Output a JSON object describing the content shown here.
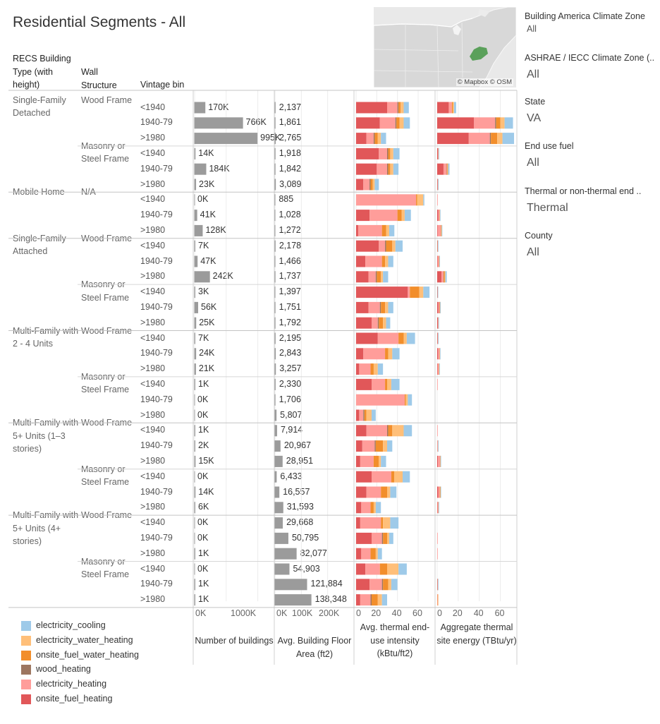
{
  "title": "Residential Segments - All",
  "headers": {
    "type": "RECS Building Type (with height)",
    "wall": "Wall Structure",
    "vintage": "Vintage bin"
  },
  "filters": [
    {
      "label": "Building America Climate Zone",
      "value": "All"
    },
    {
      "label": "ASHRAE / IECC Climate Zone (..",
      "value": "All"
    },
    {
      "label": "State",
      "value": "VA"
    },
    {
      "label": "End use fuel",
      "value": "All"
    },
    {
      "label": "Thermal or non-thermal end ..",
      "value": "Thermal"
    },
    {
      "label": "County",
      "value": "All"
    }
  ],
  "map_credit": "© Mapbox © OSM",
  "axis_titles": {
    "buildings": "Number of buildings",
    "area": "Avg. Building Floor Area (ft2)",
    "intensity": "Avg. thermal end-use intensity (kBtu/ft2)",
    "energy": "Aggregate thermal site energy (TBtu/yr)"
  },
  "axis_ticks": {
    "buildings": [
      "0K",
      "1000K"
    ],
    "area": [
      "0K",
      "100K",
      "200K"
    ],
    "intensity": [
      "0",
      "20",
      "40",
      "60"
    ],
    "energy": [
      "0",
      "20",
      "40",
      "60"
    ]
  },
  "legend": [
    {
      "label": "electricity_cooling",
      "color": "#9ecae9"
    },
    {
      "label": "electricity_water_heating",
      "color": "#ffbf79"
    },
    {
      "label": "onsite_fuel_water_heating",
      "color": "#f28e2b"
    },
    {
      "label": "wood_heating",
      "color": "#9d7660"
    },
    {
      "label": "electricity_heating",
      "color": "#ff9d9a"
    },
    {
      "label": "onsite_fuel_heating",
      "color": "#e15759"
    }
  ],
  "types": [
    {
      "name": "Single-Family Detached",
      "walls": [
        {
          "name": "Wood Frame",
          "rows": [
            {
              "vintage": "<1940",
              "n_label": "170K",
              "area_label": "2,137"
            },
            {
              "vintage": "1940-79",
              "n_label": "766K",
              "area_label": "1,861"
            },
            {
              "vintage": ">1980",
              "n_label": "995K",
              "area_label": "2,765"
            }
          ]
        },
        {
          "name": "Masonry or Steel Frame",
          "rows": [
            {
              "vintage": "<1940",
              "n_label": "14K",
              "area_label": "1,918"
            },
            {
              "vintage": "1940-79",
              "n_label": "184K",
              "area_label": "1,842"
            },
            {
              "vintage": ">1980",
              "n_label": "23K",
              "area_label": "3,089"
            }
          ]
        }
      ]
    },
    {
      "name": "Mobile Home",
      "walls": [
        {
          "name": "N/A",
          "rows": [
            {
              "vintage": "<1940",
              "n_label": "0K",
              "area_label": "885"
            },
            {
              "vintage": "1940-79",
              "n_label": "41K",
              "area_label": "1,028"
            },
            {
              "vintage": ">1980",
              "n_label": "128K",
              "area_label": "1,272"
            }
          ]
        }
      ]
    },
    {
      "name": "Single-Family Attached",
      "walls": [
        {
          "name": "Wood Frame",
          "rows": [
            {
              "vintage": "<1940",
              "n_label": "7K",
              "area_label": "2,178"
            },
            {
              "vintage": "1940-79",
              "n_label": "47K",
              "area_label": "1,466"
            },
            {
              "vintage": ">1980",
              "n_label": "242K",
              "area_label": "1,737"
            }
          ]
        },
        {
          "name": "Masonry or Steel Frame",
          "rows": [
            {
              "vintage": "<1940",
              "n_label": "3K",
              "area_label": "1,397"
            },
            {
              "vintage": "1940-79",
              "n_label": "56K",
              "area_label": "1,751"
            },
            {
              "vintage": ">1980",
              "n_label": "25K",
              "area_label": "1,792"
            }
          ]
        }
      ]
    },
    {
      "name": "Multi-Family with 2 - 4 Units",
      "walls": [
        {
          "name": "Wood Frame",
          "rows": [
            {
              "vintage": "<1940",
              "n_label": "7K",
              "area_label": "2,195"
            },
            {
              "vintage": "1940-79",
              "n_label": "24K",
              "area_label": "2,843"
            },
            {
              "vintage": ">1980",
              "n_label": "21K",
              "area_label": "3,257"
            }
          ]
        },
        {
          "name": "Masonry or Steel Frame",
          "rows": [
            {
              "vintage": "<1940",
              "n_label": "1K",
              "area_label": "2,330"
            },
            {
              "vintage": "1940-79",
              "n_label": "0K",
              "area_label": "1,706"
            },
            {
              "vintage": ">1980",
              "n_label": "0K",
              "area_label": "5,807"
            }
          ]
        }
      ]
    },
    {
      "name": "Multi-Family with 5+ Units (1–3 stories)",
      "walls": [
        {
          "name": "Wood Frame",
          "rows": [
            {
              "vintage": "<1940",
              "n_label": "1K",
              "area_label": "7,914"
            },
            {
              "vintage": "1940-79",
              "n_label": "2K",
              "area_label": "20,967"
            },
            {
              "vintage": ">1980",
              "n_label": "15K",
              "area_label": "28,951"
            }
          ]
        },
        {
          "name": "Masonry or Steel Frame",
          "rows": [
            {
              "vintage": "<1940",
              "n_label": "0K",
              "area_label": "6,433"
            },
            {
              "vintage": "1940-79",
              "n_label": "14K",
              "area_label": "16,557"
            },
            {
              "vintage": ">1980",
              "n_label": "6K",
              "area_label": "31,593"
            }
          ]
        }
      ]
    },
    {
      "name": "Multi-Family with 5+ Units (4+ stories)",
      "walls": [
        {
          "name": "Wood Frame",
          "rows": [
            {
              "vintage": "<1940",
              "n_label": "0K",
              "area_label": "29,668"
            },
            {
              "vintage": "1940-79",
              "n_label": "0K",
              "area_label": "50,795"
            },
            {
              "vintage": ">1980",
              "n_label": "1K",
              "area_label": "82,077"
            }
          ]
        },
        {
          "name": "Masonry or Steel Frame",
          "rows": [
            {
              "vintage": "<1940",
              "n_label": "0K",
              "area_label": "54,903"
            },
            {
              "vintage": "1940-79",
              "n_label": "1K",
              "area_label": "121,884"
            },
            {
              "vintage": ">1980",
              "n_label": "1K",
              "area_label": "138,348"
            }
          ]
        }
      ]
    }
  ],
  "chart_data": {
    "type": "bar",
    "orientation": "horizontal",
    "stack_order": [
      "onsite_fuel_heating",
      "electricity_heating",
      "wood_heating",
      "onsite_fuel_water_heating",
      "electricity_water_heating",
      "electricity_cooling"
    ],
    "buildings_xlim": [
      0,
      1250000
    ],
    "area_xlim": [
      0,
      300000
    ],
    "intensity_xlim": [
      0,
      75
    ],
    "energy_xlim": [
      0,
      75
    ],
    "buildings": [
      170000,
      766000,
      995000,
      14000,
      184000,
      23000,
      0,
      41000,
      128000,
      7000,
      47000,
      242000,
      3000,
      56000,
      25000,
      7000,
      24000,
      21000,
      1000,
      0,
      0,
      1000,
      2000,
      15000,
      0,
      14000,
      6000,
      0,
      0,
      1000,
      0,
      1000,
      1000
    ],
    "area": [
      2137,
      1861,
      2765,
      1918,
      1842,
      3089,
      885,
      1028,
      1272,
      2178,
      1466,
      1737,
      1397,
      1751,
      1792,
      2195,
      2843,
      3257,
      2330,
      1706,
      5807,
      7914,
      20967,
      28951,
      6433,
      16557,
      31593,
      29668,
      50795,
      82077,
      54903,
      121884,
      138348
    ],
    "intensity": [
      [
        30,
        10,
        1,
        2,
        3,
        5
      ],
      [
        23,
        15,
        1,
        3,
        4,
        6
      ],
      [
        10,
        7,
        1,
        3,
        3,
        5
      ],
      [
        22,
        8,
        1,
        2,
        3,
        6
      ],
      [
        20,
        10,
        1,
        2,
        3,
        5
      ],
      [
        7,
        6,
        1,
        2,
        2,
        4
      ],
      [
        0,
        58,
        0,
        1,
        6,
        1
      ],
      [
        13,
        27,
        0,
        4,
        3,
        6
      ],
      [
        2,
        23,
        0,
        4,
        3,
        5
      ],
      [
        22,
        6,
        1,
        6,
        3,
        7
      ],
      [
        9,
        16,
        0,
        3,
        3,
        5
      ],
      [
        12,
        7,
        1,
        4,
        2,
        5
      ],
      [
        50,
        2,
        0,
        9,
        4,
        6
      ],
      [
        12,
        11,
        1,
        4,
        3,
        5
      ],
      [
        15,
        6,
        1,
        4,
        3,
        4
      ],
      [
        21,
        20,
        0,
        5,
        3,
        8
      ],
      [
        7,
        21,
        0,
        3,
        4,
        7
      ],
      [
        3,
        11,
        0,
        3,
        4,
        5
      ],
      [
        15,
        13,
        0,
        2,
        4,
        8
      ],
      [
        0,
        47,
        0,
        1,
        2,
        4
      ],
      [
        3,
        4,
        1,
        2,
        5,
        4
      ],
      [
        10,
        20,
        1,
        4,
        11,
        8
      ],
      [
        6,
        12,
        1,
        7,
        4,
        5
      ],
      [
        4,
        13,
        0,
        5,
        2,
        5
      ],
      [
        15,
        19,
        0,
        3,
        8,
        7
      ],
      [
        10,
        14,
        0,
        6,
        3,
        6
      ],
      [
        5,
        9,
        0,
        3,
        2,
        5
      ],
      [
        4,
        20,
        0,
        2,
        7,
        8
      ],
      [
        15,
        10,
        1,
        4,
        2,
        4
      ],
      [
        5,
        9,
        0,
        5,
        2,
        4
      ],
      [
        9,
        14,
        0,
        7,
        11,
        8
      ],
      [
        13,
        12,
        1,
        5,
        3,
        6
      ],
      [
        4,
        10,
        1,
        6,
        4,
        5
      ]
    ],
    "energy": [
      [
        11,
        3,
        0,
        1,
        1,
        2
      ],
      [
        35,
        20,
        1,
        4,
        4,
        8
      ],
      [
        30,
        20,
        1,
        6,
        5,
        11
      ],
      [
        0.8,
        0.3,
        0,
        0.1,
        0.1,
        0.2
      ],
      [
        6,
        3,
        0.2,
        0.6,
        0.6,
        1.3
      ],
      [
        0.3,
        0.3,
        0,
        0.1,
        0.1,
        0.2
      ],
      [
        0,
        0.1,
        0,
        0,
        0,
        0
      ],
      [
        1,
        1.2,
        0,
        0.2,
        0.2,
        0.3
      ],
      [
        0.5,
        3,
        0,
        0.4,
        0.4,
        0.6
      ],
      [
        0.3,
        0.1,
        0,
        0.1,
        0.1,
        0.2
      ],
      [
        0.5,
        1.2,
        0,
        0.2,
        0.2,
        0.3
      ],
      [
        4,
        2,
        0.2,
        1,
        0.6,
        1.3
      ],
      [
        0.3,
        0,
        0,
        0.1,
        0,
        0.1
      ],
      [
        1.2,
        1,
        0.1,
        0.3,
        0.2,
        0.4
      ],
      [
        0.7,
        0.3,
        0,
        0.1,
        0.1,
        0.2
      ],
      [
        0.3,
        0.3,
        0,
        0.1,
        0,
        0.1
      ],
      [
        0.9,
        1.3,
        0,
        0.2,
        0.2,
        0.4
      ],
      [
        0.4,
        1.2,
        0,
        0.2,
        0.2,
        0.3
      ],
      [
        0,
        0.1,
        0,
        0,
        0,
        0
      ],
      [
        0,
        0,
        0,
        0,
        0,
        0
      ],
      [
        0,
        0,
        0,
        0,
        0,
        0
      ],
      [
        0,
        0.1,
        0,
        0,
        0,
        0
      ],
      [
        0,
        0.6,
        0,
        0.1,
        0,
        0.1
      ],
      [
        0.8,
        2,
        0,
        0.3,
        0.1,
        0.3
      ],
      [
        0,
        0,
        0,
        0,
        0,
        0
      ],
      [
        1,
        1.5,
        0,
        0.5,
        0.2,
        0.3
      ],
      [
        0.3,
        0.8,
        0,
        0.1,
        0.1,
        0.2
      ],
      [
        0,
        0,
        0,
        0,
        0,
        0
      ],
      [
        0,
        0.1,
        0,
        0,
        0,
        0
      ],
      [
        0,
        0.2,
        0,
        0,
        0,
        0
      ],
      [
        0,
        0,
        0,
        0,
        0,
        0
      ],
      [
        0.2,
        0.3,
        0,
        0.1,
        0,
        0.1
      ],
      [
        0,
        0.4,
        0,
        0.1,
        0,
        0
      ]
    ]
  }
}
